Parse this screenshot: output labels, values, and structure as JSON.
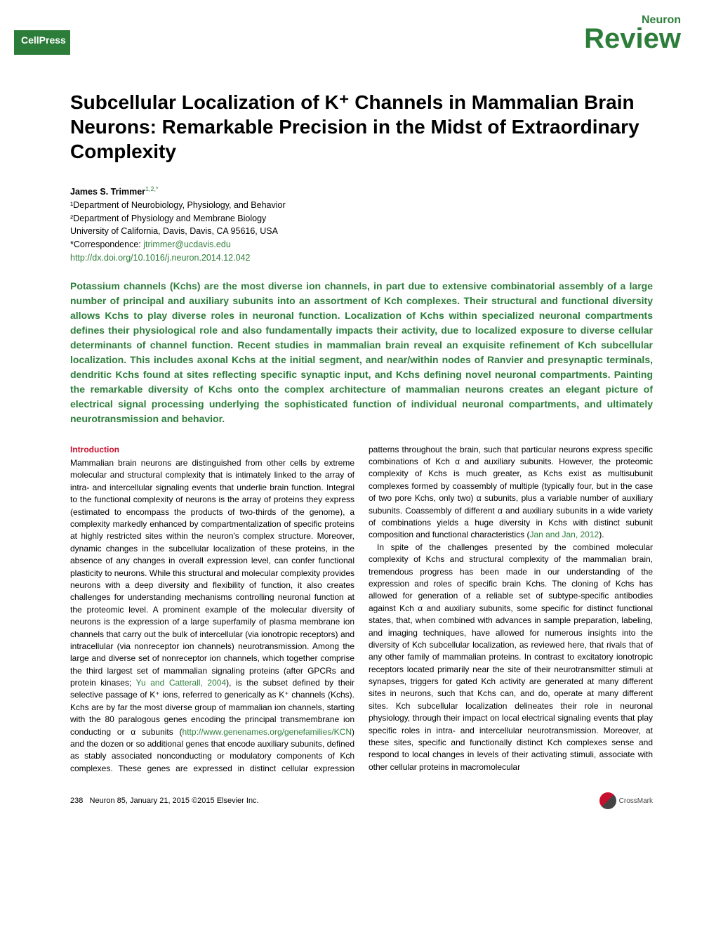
{
  "header": {
    "publisher": "CellPress",
    "journal": "Neuron",
    "article_type": "Review"
  },
  "title": "Subcellular Localization of K⁺ Channels in Mammalian Brain Neurons: Remarkable Precision in the Midst of Extraordinary Complexity",
  "author": {
    "name": "James S. Trimmer",
    "sup": "1,2,",
    "corr": "*"
  },
  "affiliations": {
    "a1": "¹Department of Neurobiology, Physiology, and Behavior",
    "a2": "²Department of Physiology and Membrane Biology",
    "inst": "University of California, Davis, Davis, CA 95616, USA",
    "corr_label": "*Correspondence: ",
    "email": "jtrimmer@ucdavis.edu",
    "doi": "http://dx.doi.org/10.1016/j.neuron.2014.12.042"
  },
  "abstract": "Potassium channels (Kchs) are the most diverse ion channels, in part due to extensive combinatorial assembly of a large number of principal and auxiliary subunits into an assortment of Kch complexes. Their structural and functional diversity allows Kchs to play diverse roles in neuronal function. Localization of Kchs within specialized neuronal compartments defines their physiological role and also fundamentally impacts their activity, due to localized exposure to diverse cellular determinants of channel function. Recent studies in mammalian brain reveal an exquisite refinement of Kch subcellular localization. This includes axonal Kchs at the initial segment, and near/within nodes of Ranvier and presynaptic terminals, dendritic Kchs found at sites reflecting specific synaptic input, and Kchs defining novel neuronal compartments. Painting the remarkable diversity of Kchs onto the complex architecture of mammalian neurons creates an elegant picture of electrical signal processing underlying the sophisticated function of individual neuronal compartments, and ultimately neurotransmission and behavior.",
  "sections": {
    "intro_header": "Introduction",
    "intro_p1a": "Mammalian brain neurons are distinguished from other cells by extreme molecular and structural complexity that is intimately linked to the array of intra- and intercellular signaling events that underlie brain function. Integral to the functional complexity of neurons is the array of proteins they express (estimated to encompass the products of two-thirds of the genome), a complexity markedly enhanced by compartmentalization of specific proteins at highly restricted sites within the neuron's complex structure. Moreover, dynamic changes in the subcellular localization of these proteins, in the absence of any changes in overall expression level, can confer functional plasticity to neurons. While this structural and molecular complexity provides neurons with a deep diversity and flexibility of function, it also creates challenges for understanding mechanisms controlling neuronal function at the proteomic level. A prominent example of the molecular diversity of neurons is the expression of a large superfamily of plasma membrane ion channels that carry out the bulk of intercellular (via ionotropic receptors) and intracellular (via nonreceptor ion channels) neurotransmission. Among the large and diverse set of nonreceptor ion channels, which together comprise the third largest set of mammalian signaling proteins (after GPCRs and protein kinases; ",
    "ref1": "Yu and Catterall, 2004",
    "intro_p1b": "), is the subset defined by their selective passage of K⁺ ions, referred to generically as K⁺ channels (Kchs). Kchs are by far the most diverse group of mammalian ion channels, starting with the 80 paralogous genes encoding the principal transmembrane ion conducting or α subunits (",
    "link2": "http://www.genenames.org/genefamilies/KCN",
    "intro_p1c": ") and the dozen or so additional genes that encode auxiliary subunits, defined as stably associated nonconducting or modulatory components of Kch complexes. These genes are expressed in distinct cellular expression patterns throughout the brain, such that particular neurons express specific combinations of Kch α and auxiliary subunits. However, the proteomic complexity of Kchs is much greater, as Kchs exist as multisubunit complexes formed by coassembly of multiple (typically four, but in the case of two pore Kchs, only two) α subunits, plus a variable number of auxiliary subunits. Coassembly of different α and auxiliary subunits in a wide variety of combinations yields a huge diversity in Kchs with distinct subunit composition and functional characteristics (",
    "ref2": "Jan and Jan, 2012",
    "intro_p1d": ").",
    "intro_p2": "In spite of the challenges presented by the combined molecular complexity of Kchs and structural complexity of the mammalian brain, tremendous progress has been made in our understanding of the expression and roles of specific brain Kchs. The cloning of Kchs has allowed for generation of a reliable set of subtype-specific antibodies against Kch α and auxiliary subunits, some specific for distinct functional states, that, when combined with advances in sample preparation, labeling, and imaging techniques, have allowed for numerous insights into the diversity of Kch subcellular localization, as reviewed here, that rivals that of any other family of mammalian proteins. In contrast to excitatory ionotropic receptors located primarily near the site of their neurotransmitter stimuli at synapses, triggers for gated Kch activity are generated at many different sites in neurons, such that Kchs can, and do, operate at many different sites. Kch subcellular localization delineates their role in neuronal physiology, through their impact on local electrical signaling events that play specific roles in intra- and intercellular neurotransmission. Moreover, at these sites, specific and functionally distinct Kch complexes sense and respond to local changes in levels of their activating stimuli, associate with other cellular proteins in macromolecular"
  },
  "footer": {
    "page": "238",
    "citation": "Neuron 85, January 21, 2015 ©2015 Elsevier Inc.",
    "crossmark": "CrossMark"
  },
  "colors": {
    "green": "#2d7d3a",
    "red": "#c8102e"
  }
}
